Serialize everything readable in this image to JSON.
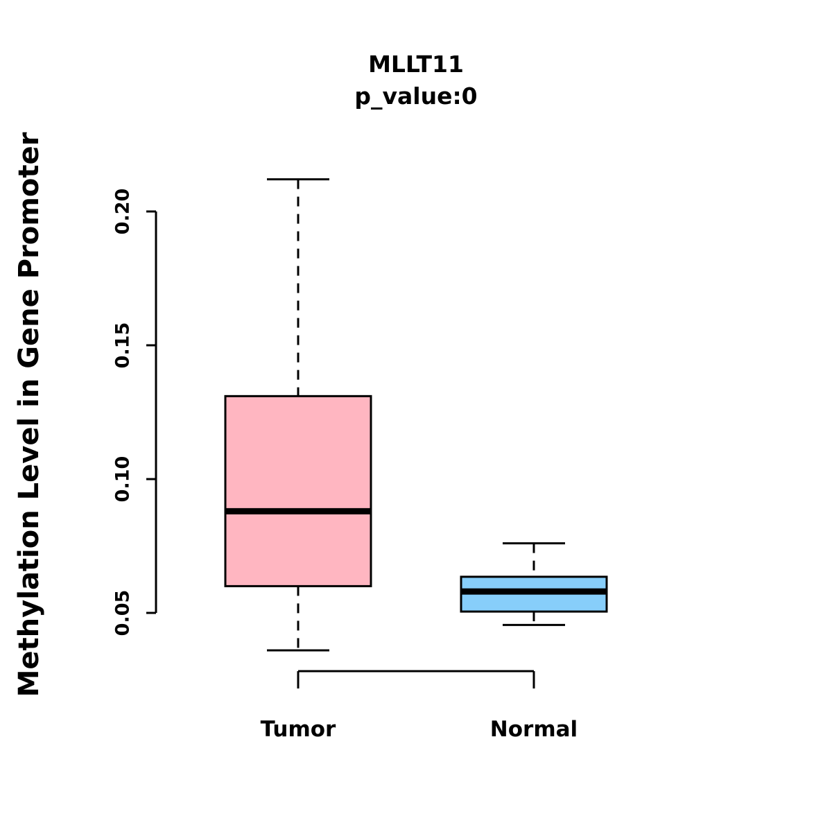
{
  "chart_data": {
    "type": "boxplot",
    "title": "MLLT11",
    "subtitle": "p_value:0",
    "ylabel": "Methylation Level in Gene Promoter",
    "xlabel": "",
    "categories": [
      "Tumor",
      "Normal"
    ],
    "yticks": [
      0.05,
      0.1,
      0.15,
      0.2
    ],
    "ylim": [
      0.036,
      0.212
    ],
    "grid": false,
    "legend": "none",
    "colors": {
      "tumor_box": "#FFB6C1",
      "normal_box": "#87CEFA",
      "stroke": "#000000",
      "background": "#FFFFFF"
    },
    "series": [
      {
        "name": "Tumor",
        "color": "#FFB6C1",
        "stats": {
          "min": 0.036,
          "q1": 0.06,
          "median": 0.088,
          "q3": 0.131,
          "max": 0.212
        }
      },
      {
        "name": "Normal",
        "color": "#87CEFA",
        "stats": {
          "min": 0.0455,
          "q1": 0.0505,
          "median": 0.058,
          "q3": 0.0635,
          "max": 0.076
        }
      }
    ]
  }
}
